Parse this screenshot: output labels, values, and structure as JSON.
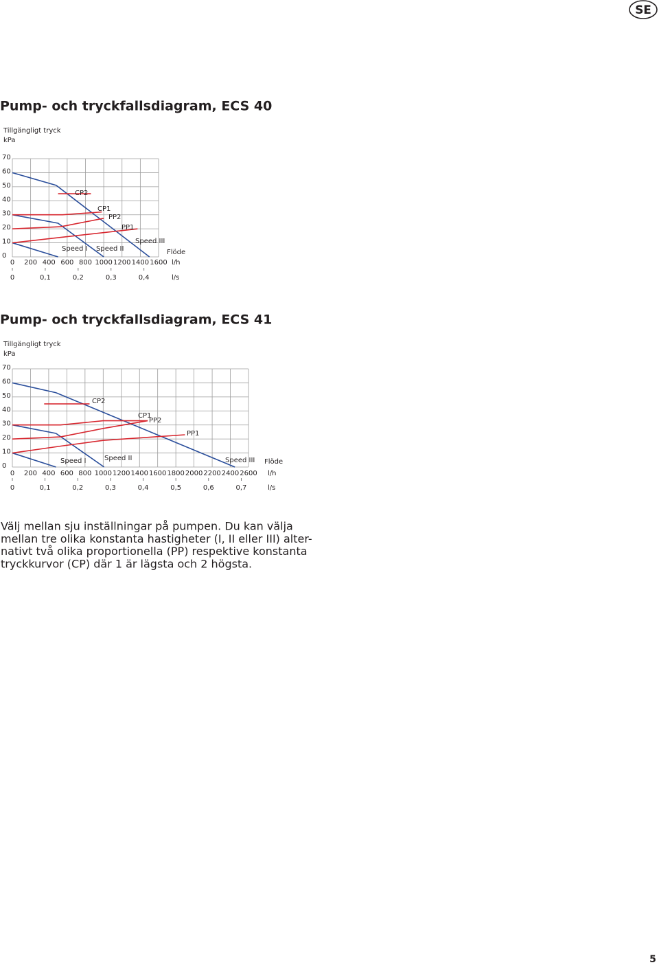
{
  "header": {
    "badge": "SE"
  },
  "chart_data": [
    {
      "type": "line",
      "title": "Pump- och tryckfallsdiagram, ECS 40",
      "ylabel": "Tillgängligt tryck",
      "yunit": "kPa",
      "xlabel": "Flöde",
      "xunit": "l/h",
      "x2unit": "l/s",
      "xlim": [
        0,
        1600
      ],
      "xticks": [
        0,
        200,
        400,
        600,
        800,
        1000,
        1200,
        1400,
        1600
      ],
      "ylim": [
        0,
        70
      ],
      "yticks": [
        0,
        10,
        20,
        30,
        40,
        50,
        60,
        70
      ],
      "x2lim": [
        0,
        0.4444
      ],
      "x2ticks": [
        0,
        {
          "value": 0.1,
          "label": "0,1"
        },
        {
          "value": 0.2,
          "label": "0,2"
        },
        {
          "value": 0.3,
          "label": "0,3"
        },
        {
          "value": 0.4,
          "label": "0,4"
        }
      ],
      "grid": true,
      "series": [
        {
          "name": "Speed III",
          "color": "#2a4e9b",
          "x": [
            0,
            480,
            1500
          ],
          "values": [
            60,
            51,
            0
          ]
        },
        {
          "name": "Speed II",
          "color": "#2a4e9b",
          "x": [
            0,
            500,
            1000
          ],
          "values": [
            30,
            24,
            0
          ]
        },
        {
          "name": "Speed I",
          "color": "#2a4e9b",
          "x": [
            0,
            500
          ],
          "values": [
            10,
            0
          ]
        },
        {
          "name": "CP2",
          "color": "#d7262e",
          "x": [
            500,
            860
          ],
          "values": [
            45,
            45
          ]
        },
        {
          "name": "CP1",
          "color": "#d7262e",
          "x": [
            0,
            550,
            980
          ],
          "values": [
            30,
            30,
            32
          ]
        },
        {
          "name": "PP2",
          "color": "#d7262e",
          "x": [
            0,
            530,
            1000
          ],
          "values": [
            20,
            21.5,
            27.5
          ]
        },
        {
          "name": "PP1",
          "color": "#d7262e",
          "x": [
            0,
            540,
            1370
          ],
          "values": [
            10,
            14,
            20
          ]
        }
      ]
    },
    {
      "type": "line",
      "title": "Pump- och tryckfallsdiagram, ECS 41",
      "ylabel": "Tillgängligt tryck",
      "yunit": "kPa",
      "xlabel": "Flöde",
      "xunit": "l/h",
      "x2unit": "l/s",
      "xlim": [
        0,
        2600
      ],
      "xticks": [
        0,
        200,
        400,
        600,
        800,
        1000,
        1200,
        1400,
        1600,
        1800,
        2000,
        2200,
        2400,
        2600
      ],
      "ylim": [
        0,
        70
      ],
      "yticks": [
        0,
        10,
        20,
        30,
        40,
        50,
        60,
        70
      ],
      "x2lim": [
        0,
        0.7222
      ],
      "x2ticks": [
        0,
        {
          "value": 0.1,
          "label": "0,1"
        },
        {
          "value": 0.2,
          "label": "0,2"
        },
        {
          "value": 0.3,
          "label": "0,3"
        },
        {
          "value": 0.4,
          "label": "0,4"
        },
        {
          "value": 0.5,
          "label": "0,5"
        },
        {
          "value": 0.6,
          "label": "0,6"
        },
        {
          "value": 0.7,
          "label": "0,7"
        }
      ],
      "grid": true,
      "series": [
        {
          "name": "Speed III",
          "color": "#2a4e9b",
          "x": [
            0,
            480,
            2450
          ],
          "values": [
            60,
            53,
            0
          ]
        },
        {
          "name": "Speed II",
          "color": "#2a4e9b",
          "x": [
            0,
            480,
            1010
          ],
          "values": [
            30,
            24,
            0
          ]
        },
        {
          "name": "Speed I",
          "color": "#2a4e9b",
          "x": [
            0,
            480
          ],
          "values": [
            10,
            0
          ]
        },
        {
          "name": "CP2",
          "color": "#d7262e",
          "x": [
            350,
            850
          ],
          "values": [
            45,
            45
          ]
        },
        {
          "name": "CP1",
          "color": "#d7262e",
          "x": [
            0,
            530,
            1000,
            1490
          ],
          "values": [
            30,
            30,
            33,
            33
          ]
        },
        {
          "name": "PP2",
          "color": "#d7262e",
          "x": [
            0,
            530,
            1000,
            1490
          ],
          "values": [
            20,
            21.5,
            27.5,
            33
          ]
        },
        {
          "name": "PP1",
          "color": "#d7262e",
          "x": [
            0,
            540,
            1000,
            1900
          ],
          "values": [
            10,
            15,
            19,
            23
          ]
        }
      ]
    }
  ],
  "body": {
    "lines": [
      "Välj mellan sju inställningar på pumpen. Du kan välja",
      "mellan tre olika konstanta hastigheter (I, II eller III) alter-",
      "nativt två olika proportionella (PP) respektive konstanta",
      "tryckkurvor (CP) där 1 är lägsta och 2 högsta."
    ]
  },
  "footer": {
    "page": "5"
  }
}
